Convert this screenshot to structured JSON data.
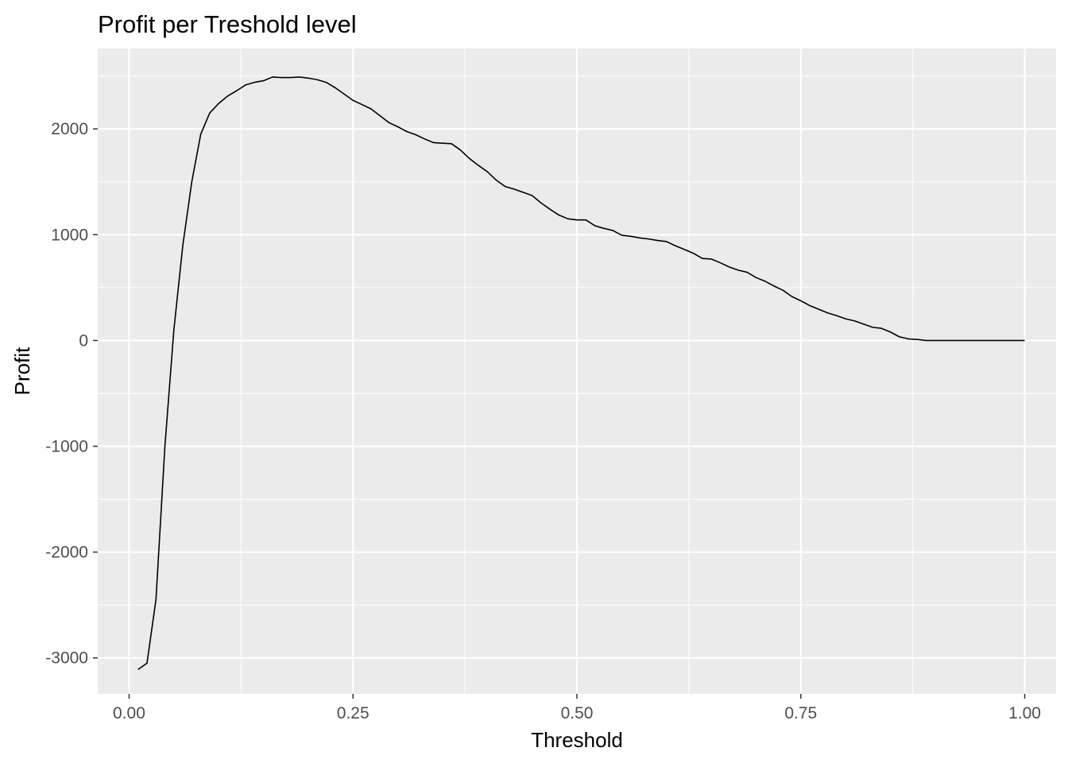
{
  "chart_data": {
    "type": "line",
    "title": "Profit per Treshold level",
    "xlabel": "Threshold",
    "ylabel": "Profit",
    "xlim": [
      -0.035,
      1.035
    ],
    "ylim": [
      -3340,
      2760
    ],
    "x_ticks": [
      0.0,
      0.25,
      0.5,
      0.75,
      1.0
    ],
    "x_tick_labels": [
      "0.00",
      "0.25",
      "0.50",
      "0.75",
      "1.00"
    ],
    "x_minor_ticks": [
      0.125,
      0.375,
      0.625,
      0.875
    ],
    "y_ticks": [
      -3000,
      -2000,
      -1000,
      0,
      1000,
      2000
    ],
    "y_tick_labels": [
      "-3000",
      "-2000",
      "-1000",
      "0",
      "1000",
      "2000"
    ],
    "y_minor_ticks": [
      -2500,
      -1500,
      -500,
      500,
      1500,
      2500
    ],
    "grid": true,
    "colors": {
      "panel": "#ebebeb",
      "grid": "#ffffff",
      "line": "#000000"
    },
    "series": [
      {
        "x": [
          0.01,
          0.02,
          0.03,
          0.04,
          0.05,
          0.06,
          0.07,
          0.08,
          0.09,
          0.1,
          0.11,
          0.12,
          0.13,
          0.14,
          0.15,
          0.16,
          0.17,
          0.18,
          0.19,
          0.2,
          0.21,
          0.22,
          0.23,
          0.24,
          0.25,
          0.26,
          0.27,
          0.28,
          0.29,
          0.3,
          0.31,
          0.32,
          0.33,
          0.34,
          0.35,
          0.36,
          0.37,
          0.38,
          0.39,
          0.4,
          0.41,
          0.42,
          0.43,
          0.44,
          0.45,
          0.46,
          0.47,
          0.48,
          0.49,
          0.5,
          0.51,
          0.52,
          0.53,
          0.54,
          0.55,
          0.56,
          0.57,
          0.58,
          0.59,
          0.6,
          0.61,
          0.62,
          0.63,
          0.64,
          0.65,
          0.66,
          0.67,
          0.68,
          0.69,
          0.7,
          0.71,
          0.72,
          0.73,
          0.74,
          0.75,
          0.76,
          0.77,
          0.78,
          0.79,
          0.8,
          0.81,
          0.82,
          0.83,
          0.84,
          0.85,
          0.86,
          0.87,
          0.88,
          0.89,
          0.9,
          0.91,
          0.92,
          0.93,
          0.94,
          0.95,
          0.96,
          0.97,
          0.98,
          0.99,
          1.0
        ],
        "values": [
          -3110,
          -3050,
          -2450,
          -1000,
          100,
          900,
          1500,
          1950,
          2150,
          2240,
          2310,
          2360,
          2415,
          2440,
          2455,
          2490,
          2485,
          2485,
          2490,
          2480,
          2465,
          2440,
          2390,
          2330,
          2270,
          2230,
          2190,
          2125,
          2060,
          2020,
          1975,
          1945,
          1905,
          1870,
          1865,
          1860,
          1800,
          1720,
          1655,
          1595,
          1515,
          1455,
          1430,
          1400,
          1370,
          1300,
          1240,
          1185,
          1150,
          1140,
          1140,
          1085,
          1060,
          1040,
          995,
          985,
          970,
          960,
          945,
          935,
          895,
          860,
          825,
          775,
          770,
          735,
          695,
          665,
          645,
          595,
          560,
          515,
          475,
          415,
          375,
          330,
          295,
          260,
          235,
          205,
          185,
          155,
          125,
          115,
          80,
          35,
          15,
          10,
          0,
          0,
          0,
          0,
          0,
          0,
          0,
          0,
          0,
          0,
          0,
          0
        ]
      }
    ]
  }
}
